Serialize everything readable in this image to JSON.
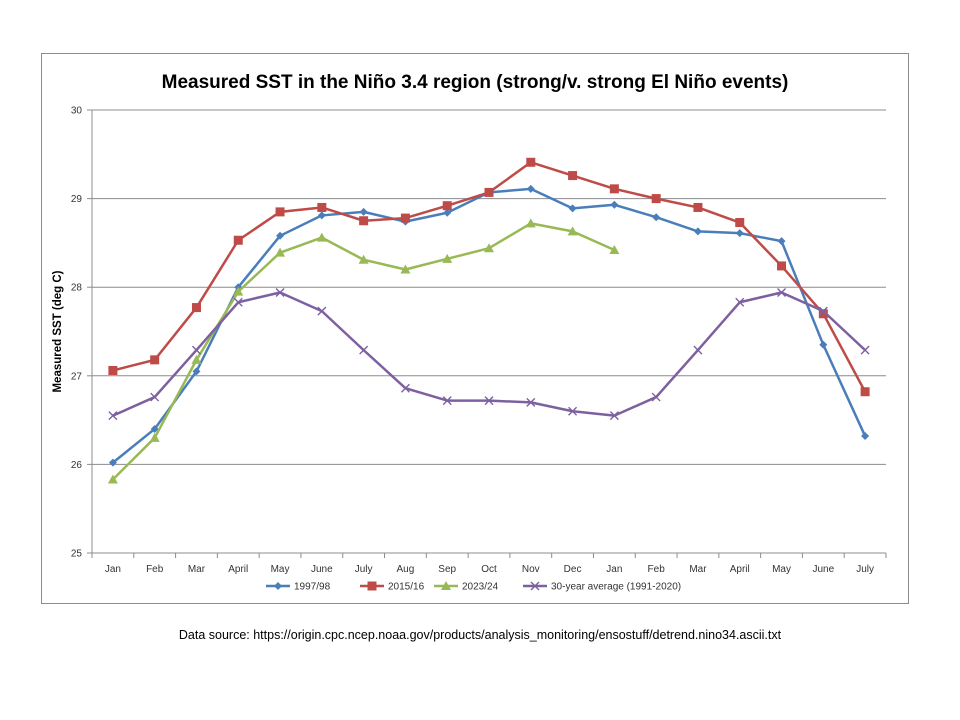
{
  "chart_data": {
    "type": "line",
    "title": "Measured SST in the Niño 3.4 region (strong/v. strong El Niño events)",
    "xlabel": "",
    "ylabel": "Measured SST (deg C)",
    "ylim": [
      25,
      30
    ],
    "yticks": [
      25,
      26,
      27,
      28,
      29,
      30
    ],
    "grid": true,
    "legend_position": "bottom",
    "categories": [
      "Jan",
      "Feb",
      "Mar",
      "April",
      "May",
      "June",
      "July",
      "Aug",
      "Sep",
      "Oct",
      "Nov",
      "Dec",
      "Jan",
      "Feb",
      "Mar",
      "April",
      "May",
      "June",
      "July"
    ],
    "series": [
      {
        "name": "1997/98",
        "color": "#4a7ebb",
        "marker": "diamond",
        "values": [
          26.02,
          26.4,
          27.05,
          28.0,
          28.58,
          28.81,
          28.85,
          28.74,
          28.84,
          29.07,
          29.11,
          28.89,
          28.93,
          28.79,
          28.63,
          28.61,
          28.52,
          27.35,
          26.32
        ]
      },
      {
        "name": "2015/16",
        "color": "#be4b48",
        "marker": "square",
        "values": [
          27.06,
          27.18,
          27.77,
          28.53,
          28.85,
          28.9,
          28.75,
          28.78,
          28.92,
          29.07,
          29.41,
          29.26,
          29.11,
          29.0,
          28.9,
          28.73,
          28.24,
          27.7,
          26.82
        ]
      },
      {
        "name": "2023/24",
        "color": "#98b954",
        "marker": "triangle",
        "values": [
          25.83,
          26.3,
          27.18,
          27.95,
          28.39,
          28.56,
          28.31,
          28.2,
          28.32,
          28.44,
          28.72,
          28.63,
          28.42,
          null,
          null,
          null,
          null,
          null,
          null
        ]
      },
      {
        "name": "30-year average (1991-2020)",
        "color": "#7d60a0",
        "marker": "x",
        "values": [
          26.55,
          26.76,
          27.29,
          27.83,
          27.94,
          27.73,
          27.29,
          26.86,
          26.72,
          26.72,
          26.7,
          26.6,
          26.55,
          26.76,
          27.29,
          27.83,
          27.94,
          27.73,
          27.29
        ]
      }
    ]
  },
  "source_note": "Data source: https://origin.cpc.ncep.noaa.gov/products/analysis_monitoring/ensostuff/detrend.nino34.ascii.txt"
}
